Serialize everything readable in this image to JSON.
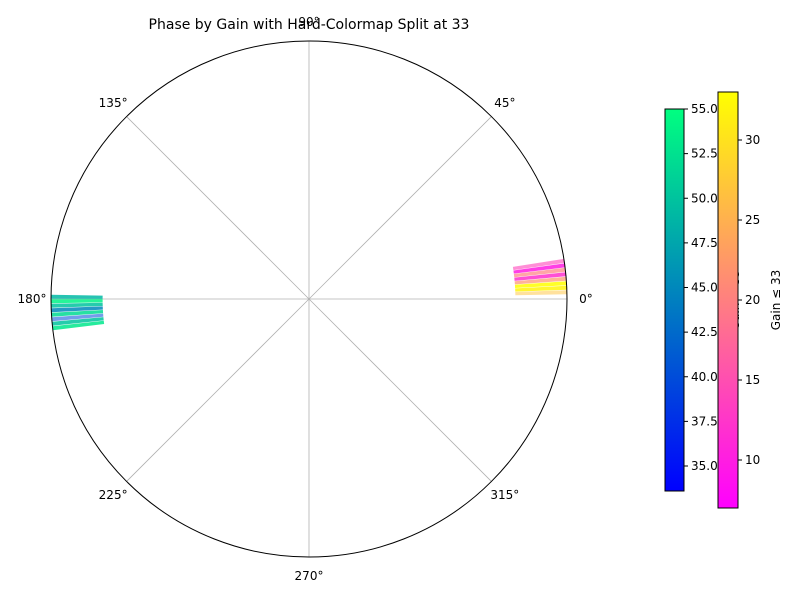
{
  "chart_data": {
    "type": "polar-bar",
    "title": "Phase by Gain with Hard-Colormap Split at 33",
    "split_value": 33,
    "angle_ticks": [
      "0°",
      "45°",
      "90°",
      "135°",
      "180°",
      "225°",
      "270°",
      "315°"
    ],
    "rlim": [
      0,
      1
    ],
    "radial_extent": [
      0.8,
      1.0
    ],
    "grid": true,
    "groups": [
      {
        "name": "gain-low",
        "center_deg": 5,
        "bars": [
          {
            "offset_deg": -3.5,
            "gain": 27,
            "alpha": 0.5
          },
          {
            "offset_deg": -2.5,
            "gain": 32,
            "alpha": 0.85
          },
          {
            "offset_deg": -1.5,
            "gain": 33,
            "alpha": 0.85
          },
          {
            "offset_deg": -0.5,
            "gain": 22,
            "alpha": 0.7
          },
          {
            "offset_deg": 0.5,
            "gain": 12,
            "alpha": 0.85
          },
          {
            "offset_deg": 1.5,
            "gain": 20,
            "alpha": 0.7
          },
          {
            "offset_deg": 2.5,
            "gain": 10,
            "alpha": 0.85
          },
          {
            "offset_deg": 3.5,
            "gain": 14,
            "alpha": 0.6
          }
        ]
      },
      {
        "name": "gain-high",
        "center_deg": 182,
        "bars": [
          {
            "offset_deg": -2.5,
            "gain": 49,
            "alpha": 0.85
          },
          {
            "offset_deg": -1.5,
            "gain": 54,
            "alpha": 0.85
          },
          {
            "offset_deg": -0.5,
            "gain": 50,
            "alpha": 0.85
          },
          {
            "offset_deg": 0.5,
            "gain": 45,
            "alpha": 0.85
          },
          {
            "offset_deg": 1.5,
            "gain": 52,
            "alpha": 0.85
          },
          {
            "offset_deg": 2.5,
            "gain": 40,
            "alpha": 0.55
          },
          {
            "offset_deg": 3.5,
            "gain": 50,
            "alpha": 0.85
          },
          {
            "offset_deg": 4.5,
            "gain": 53,
            "alpha": 0.85
          }
        ]
      }
    ],
    "colorbar_high": {
      "label": "Gain > 33",
      "range": [
        33.6,
        55.0
      ],
      "ticks": [
        "35.0",
        "37.5",
        "40.0",
        "42.5",
        "45.0",
        "47.5",
        "50.0",
        "52.5",
        "55.0"
      ],
      "tick_values": [
        35,
        37.5,
        40,
        42.5,
        45,
        47.5,
        50,
        52.5,
        55
      ],
      "colormap": "winter",
      "color_low": "#0000ff",
      "color_high": "#00ff80"
    },
    "colorbar_low": {
      "label": "Gain ≤ 33",
      "range": [
        7.0,
        33.0
      ],
      "ticks": [
        "10",
        "15",
        "20",
        "25",
        "30"
      ],
      "tick_values": [
        10,
        15,
        20,
        25,
        30
      ],
      "colormap": "spring",
      "color_low": "#ff00ff",
      "color_high": "#ffff00"
    }
  }
}
